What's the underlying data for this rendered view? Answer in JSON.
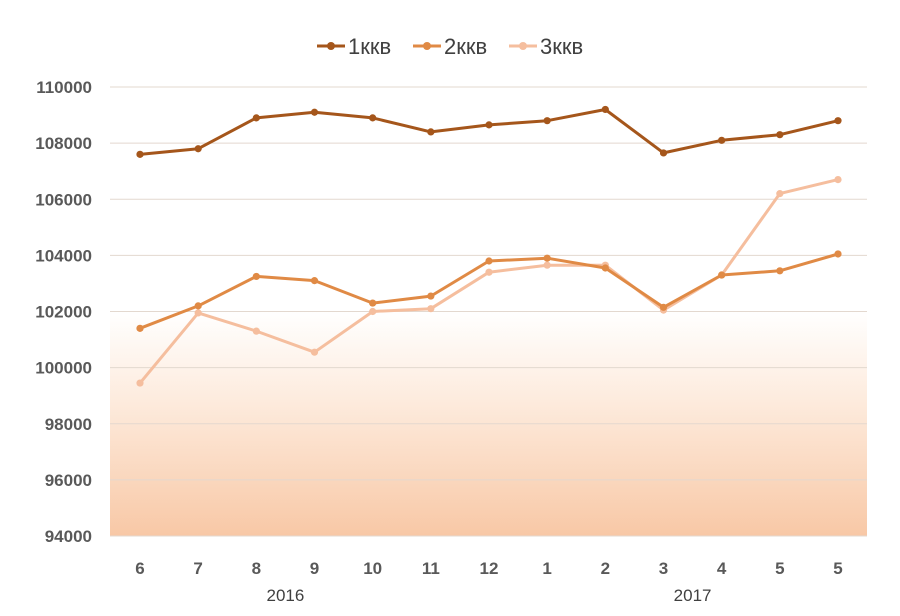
{
  "chart_data": {
    "type": "line",
    "title": "",
    "xlabel": "",
    "ylabel": "",
    "categories": [
      "6",
      "7",
      "8",
      "9",
      "10",
      "11",
      "12",
      "1",
      "2",
      "3",
      "4",
      "5",
      "5"
    ],
    "year_labels": [
      {
        "label": "2016",
        "category_index": 2.5
      },
      {
        "label": "2017",
        "category_index": 9.5
      }
    ],
    "ylim": [
      94000,
      110000
    ],
    "yticks": [
      94000,
      96000,
      98000,
      100000,
      102000,
      104000,
      106000,
      108000,
      110000
    ],
    "legend_position": "top-center",
    "grid": true,
    "series": [
      {
        "name": "1ккв",
        "color": "#A5561B",
        "values": [
          107600,
          107800,
          108900,
          109100,
          108900,
          108400,
          108650,
          108800,
          109200,
          107650,
          108100,
          108300,
          108800
        ]
      },
      {
        "name": "2ккв",
        "color": "#E08A45",
        "values": [
          101400,
          102200,
          103250,
          103100,
          102300,
          102550,
          103800,
          103900,
          103550,
          102150,
          103300,
          103450,
          104050
        ]
      },
      {
        "name": "3ккв",
        "color": "#F5BE9E",
        "values": [
          99450,
          101950,
          101300,
          100550,
          102000,
          102100,
          103400,
          103650,
          103650,
          102050,
          103300,
          106200,
          106700
        ]
      }
    ]
  }
}
